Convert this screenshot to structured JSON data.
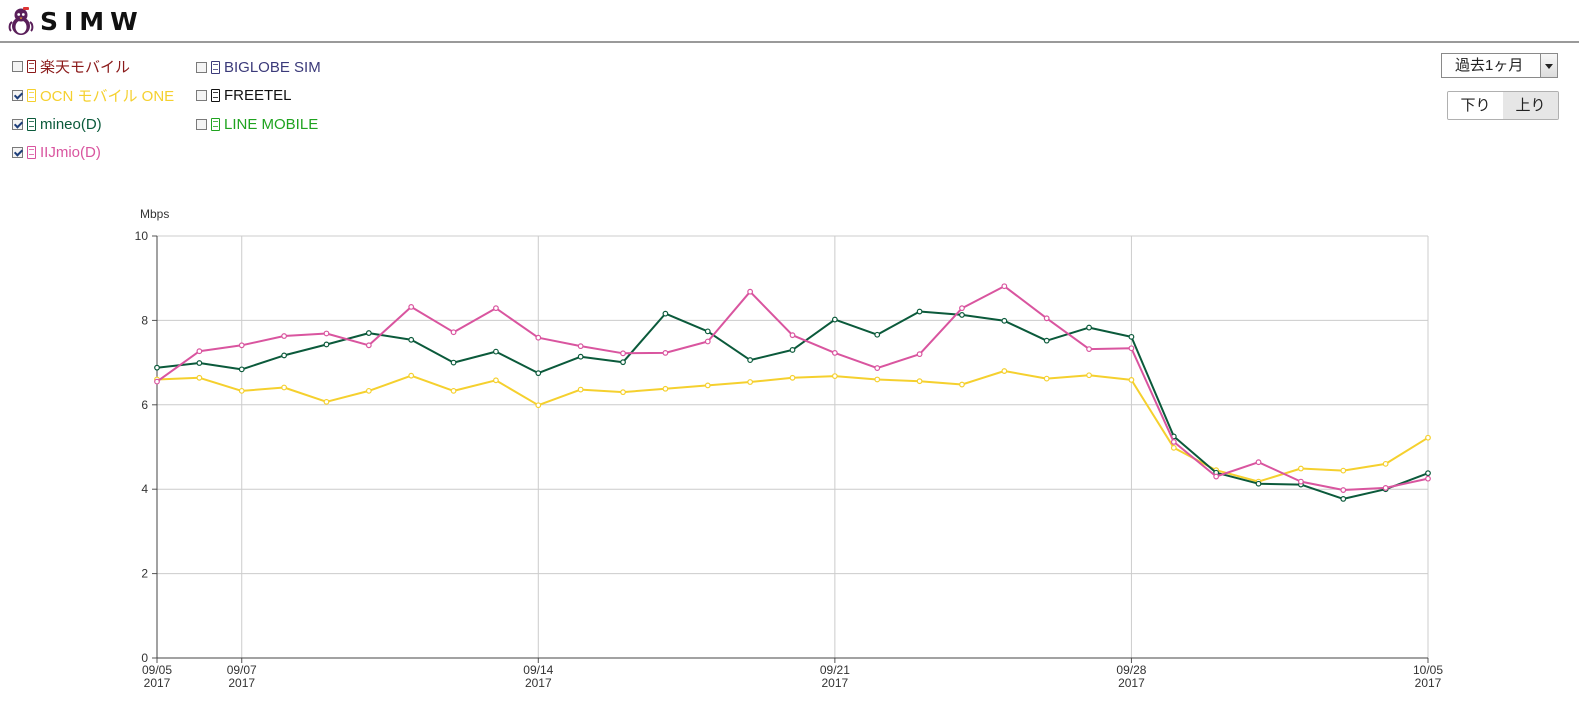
{
  "header": {
    "logo_text": "SIMW",
    "logo_icon": "penguin-mascot-icon"
  },
  "legend": {
    "items": [
      {
        "label": "楽天モバイル",
        "checked": false,
        "color": "#8b1a1a"
      },
      {
        "label": "OCN モバイル ONE",
        "checked": true,
        "color": "#f5d02e"
      },
      {
        "label": "mineo(D)",
        "checked": true,
        "color": "#0b5a3b"
      },
      {
        "label": "IIJmio(D)",
        "checked": true,
        "color": "#d9559f"
      },
      {
        "label": "BIGLOBE SIM",
        "checked": false,
        "color": "#3b3a7a"
      },
      {
        "label": "FREETEL",
        "checked": false,
        "color": "#111111"
      },
      {
        "label": "LINE MOBILE",
        "checked": false,
        "color": "#1fa31f"
      }
    ]
  },
  "controls": {
    "period_value": "過去1ヶ月",
    "direction": {
      "down_label": "下り",
      "up_label": "上り",
      "selected": "上り"
    }
  },
  "chart_data": {
    "type": "line",
    "ylabel": "Mbps",
    "ylim": [
      0,
      10
    ],
    "yticks": [
      0,
      2,
      4,
      6,
      8,
      10
    ],
    "grid": true,
    "x_start": "09/05",
    "x_end": "10/05",
    "x_dates": [
      "09/05",
      "09/06",
      "09/07",
      "09/08",
      "09/09",
      "09/10",
      "09/11",
      "09/12",
      "09/13",
      "09/14",
      "09/15",
      "09/16",
      "09/17",
      "09/18",
      "09/19",
      "09/20",
      "09/21",
      "09/22",
      "09/23",
      "09/24",
      "09/25",
      "09/26",
      "09/27",
      "09/28",
      "09/29",
      "09/30",
      "10/01",
      "10/02",
      "10/03",
      "10/04",
      "10/05"
    ],
    "xticks": [
      {
        "date": "09/05",
        "label": "09/05",
        "year": "2017"
      },
      {
        "date": "09/07",
        "label": "09/07",
        "year": "2017"
      },
      {
        "date": "09/14",
        "label": "09/14",
        "year": "2017"
      },
      {
        "date": "09/21",
        "label": "09/21",
        "year": "2017"
      },
      {
        "date": "09/28",
        "label": "09/28",
        "year": "2017"
      },
      {
        "date": "10/05",
        "label": "10/05",
        "year": "2017"
      }
    ],
    "series": [
      {
        "name": "OCN モバイル ONE",
        "color": "#f5d02e",
        "values": [
          6.6,
          6.64,
          6.33,
          6.41,
          6.07,
          6.33,
          6.69,
          6.33,
          6.58,
          5.99,
          6.36,
          6.3,
          6.38,
          6.46,
          6.54,
          6.64,
          6.68,
          6.6,
          6.56,
          6.48,
          6.8,
          6.62,
          6.7,
          6.59,
          4.98,
          4.45,
          4.18,
          4.49,
          4.44,
          4.6,
          5.22
        ]
      },
      {
        "name": "mineo(D)",
        "color": "#0b5a3b",
        "values": [
          6.88,
          6.99,
          6.84,
          7.17,
          7.43,
          7.7,
          7.54,
          7.0,
          7.26,
          6.75,
          7.14,
          7.01,
          8.16,
          7.74,
          7.06,
          7.3,
          8.02,
          7.66,
          8.21,
          8.13,
          7.99,
          7.52,
          7.83,
          7.61,
          5.25,
          4.39,
          4.13,
          4.11,
          3.77,
          4.0,
          4.38
        ]
      },
      {
        "name": "IIJmio(D)",
        "color": "#d9559f",
        "values": [
          6.55,
          7.27,
          7.41,
          7.63,
          7.69,
          7.41,
          8.32,
          7.72,
          8.29,
          7.59,
          7.39,
          7.22,
          7.23,
          7.5,
          8.68,
          7.65,
          7.23,
          6.87,
          7.2,
          8.29,
          8.81,
          8.05,
          7.32,
          7.34,
          5.12,
          4.3,
          4.64,
          4.18,
          3.98,
          4.03,
          4.25
        ]
      }
    ]
  }
}
